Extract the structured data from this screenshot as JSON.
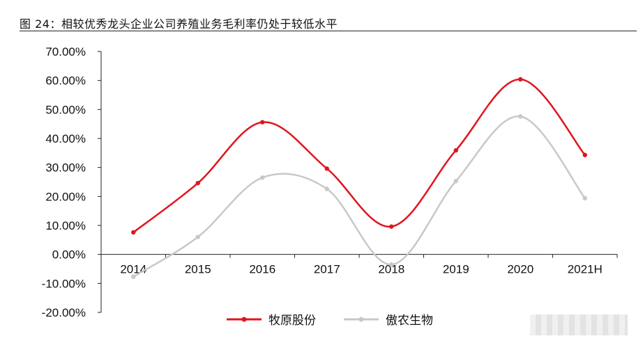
{
  "figure": {
    "title": "图 24：相较优秀龙头企业公司养殖业务毛利率仍处于较低水平"
  },
  "chart_data": {
    "type": "line",
    "categories": [
      "2014",
      "2015",
      "2016",
      "2017",
      "2018",
      "2019",
      "2020",
      "2021H"
    ],
    "y_tick_labels": [
      "70.00%",
      "60.00%",
      "50.00%",
      "40.00%",
      "30.00%",
      "20.00%",
      "10.00%",
      "0.00%",
      "-10.00%",
      "-20.00%"
    ],
    "ylim": [
      -20,
      70
    ],
    "y_unit": "%",
    "smooth": true,
    "grid": false,
    "legend_position": "bottom",
    "series": [
      {
        "name": "牧原股份",
        "color": "#e0151d",
        "values": [
          7.6,
          24.6,
          45.6,
          29.6,
          9.6,
          35.9,
          60.4,
          34.3
        ]
      },
      {
        "name": "傲农生物",
        "color": "#c8c8c8",
        "values": [
          -7.7,
          6.0,
          26.5,
          22.6,
          -3.5,
          25.3,
          47.6,
          19.4
        ]
      }
    ]
  }
}
